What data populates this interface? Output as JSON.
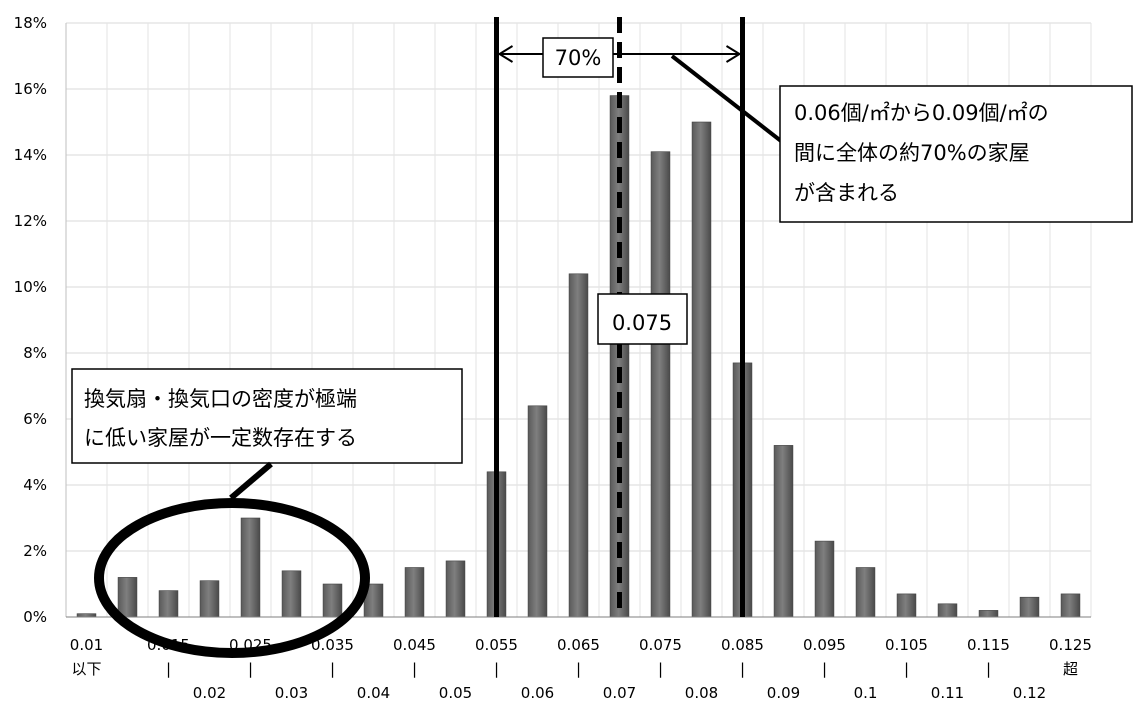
{
  "chart_data": {
    "type": "bar",
    "title": "",
    "xlabel": "",
    "ylabel": "",
    "ylim": [
      0,
      0.18
    ],
    "yticks": [
      "0%",
      "2%",
      "4%",
      "6%",
      "8%",
      "10%",
      "12%",
      "14%",
      "16%",
      "18%"
    ],
    "grid": true,
    "categories": [
      {
        "top": "0.01",
        "mid": "以下",
        "bottom": ""
      },
      {
        "top": "",
        "mid": "",
        "bottom": ""
      },
      {
        "top": "0.015",
        "mid": "|",
        "bottom": "0.02"
      },
      {
        "top": "",
        "mid": "",
        "bottom": ""
      },
      {
        "top": "0.025",
        "mid": "|",
        "bottom": "0.03"
      },
      {
        "top": "",
        "mid": "",
        "bottom": ""
      },
      {
        "top": "0.035",
        "mid": "|",
        "bottom": "0.04"
      },
      {
        "top": "",
        "mid": "",
        "bottom": ""
      },
      {
        "top": "0.045",
        "mid": "|",
        "bottom": "0.05"
      },
      {
        "top": "",
        "mid": "",
        "bottom": ""
      },
      {
        "top": "0.055",
        "mid": "|",
        "bottom": "0.06"
      },
      {
        "top": "",
        "mid": "",
        "bottom": ""
      },
      {
        "top": "0.065",
        "mid": "|",
        "bottom": "0.07"
      },
      {
        "top": "",
        "mid": "",
        "bottom": ""
      },
      {
        "top": "0.075",
        "mid": "|",
        "bottom": "0.08"
      },
      {
        "top": "",
        "mid": "",
        "bottom": ""
      },
      {
        "top": "0.085",
        "mid": "|",
        "bottom": "0.09"
      },
      {
        "top": "",
        "mid": "",
        "bottom": ""
      },
      {
        "top": "0.095",
        "mid": "|",
        "bottom": "0.1"
      },
      {
        "top": "",
        "mid": "",
        "bottom": ""
      },
      {
        "top": "0.105",
        "mid": "|",
        "bottom": "0.11"
      },
      {
        "top": "",
        "mid": "",
        "bottom": ""
      },
      {
        "top": "0.115",
        "mid": "|",
        "bottom": "0.12"
      },
      {
        "top": "",
        "mid": "",
        "bottom": ""
      },
      {
        "top": "0.125",
        "mid": "超",
        "bottom": ""
      }
    ],
    "values": [
      0.001,
      0.012,
      0.008,
      0.011,
      0.03,
      0.014,
      0.01,
      0.01,
      0.015,
      0.017,
      0.044,
      0.064,
      0.104,
      0.158,
      0.141,
      0.15,
      0.077,
      0.052,
      0.023,
      0.015,
      0.007,
      0.004,
      0.002,
      0.006,
      0.007
    ],
    "bar_color": "#7f7f7f",
    "reference_lines": [
      {
        "x": 0.06,
        "style": "solid"
      },
      {
        "x": 0.075,
        "style": "dashed",
        "label": "0.075"
      },
      {
        "x": 0.09,
        "style": "solid"
      }
    ],
    "annotations": {
      "range_arrow_label": "70%",
      "range_note_lines": [
        "0.06個/㎡から0.09個/㎡の",
        "間に全体の約70%の家屋",
        "が含まれる"
      ],
      "low_note_lines": [
        "換気扇・換気口の密度が極端",
        "に低い家屋が一定数存在する"
      ]
    }
  }
}
